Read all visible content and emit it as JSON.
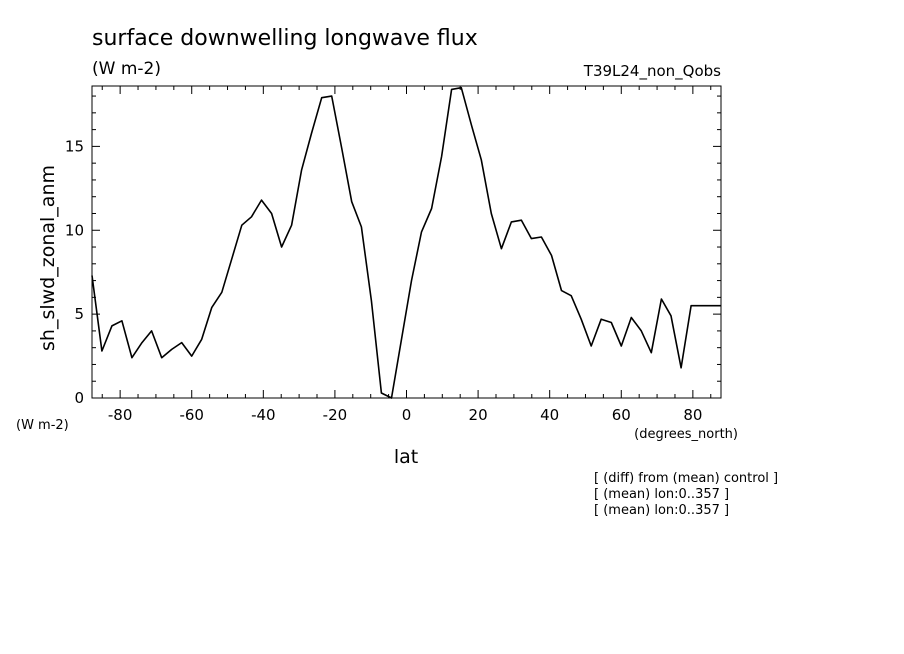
{
  "chart_data": {
    "type": "line",
    "title": "surface downwelling longwave flux",
    "title_units": "(W m-2)",
    "run_label": "T39L24_non_Qobs",
    "ylabel": "sh_slwd_zonal_anm",
    "y_units": "(W m-2)",
    "xlabel": "lat",
    "x_units": "(degrees_north)",
    "xlim": [
      -87.86,
      87.86
    ],
    "ylim": [
      0,
      18.6
    ],
    "x_ticks": [
      -80,
      -60,
      -40,
      -20,
      0,
      20,
      40,
      60,
      80
    ],
    "x_tick_labels": [
      "-80",
      "-60",
      "-40",
      "-20",
      "0",
      "20",
      "40",
      "60",
      "80"
    ],
    "y_ticks": [
      0,
      5,
      10,
      15
    ],
    "y_tick_labels": [
      "0",
      "5",
      "10",
      "15"
    ],
    "grid": false,
    "notes": [
      "[ (diff) from (mean) control ]",
      "[ (mean) lon:0..357 ]",
      "[ (mean) lon:0..357 ]"
    ],
    "series": [
      {
        "color": "#000000",
        "x": [
          -87.86,
          -85.1,
          -82.3,
          -79.5,
          -76.7,
          -73.9,
          -71.2,
          -68.4,
          -65.6,
          -62.8,
          -60.0,
          -57.2,
          -54.4,
          -51.6,
          -48.8,
          -46.0,
          -43.3,
          -40.5,
          -37.7,
          -34.9,
          -32.1,
          -29.3,
          -26.5,
          -23.7,
          -20.9,
          -18.1,
          -15.3,
          -12.6,
          -9.8,
          -7.0,
          -4.2,
          -1.4,
          1.4,
          4.2,
          7.0,
          9.8,
          12.6,
          15.3,
          18.1,
          20.9,
          23.7,
          26.5,
          29.3,
          32.1,
          34.9,
          37.7,
          40.5,
          43.3,
          46.0,
          48.8,
          51.6,
          54.4,
          57.2,
          60.0,
          62.8,
          65.6,
          68.4,
          71.2,
          73.9,
          76.7,
          79.5,
          82.3,
          85.1,
          87.86
        ],
        "y": [
          7.3,
          2.8,
          4.3,
          4.6,
          2.4,
          3.3,
          4.0,
          2.4,
          2.9,
          3.3,
          2.5,
          3.5,
          5.4,
          6.3,
          8.3,
          10.3,
          10.8,
          11.8,
          11.0,
          9.0,
          10.3,
          13.6,
          15.8,
          17.9,
          18.0,
          14.9,
          11.7,
          10.2,
          5.8,
          0.3,
          0.0,
          3.5,
          7.0,
          9.9,
          11.3,
          14.4,
          18.4,
          18.5,
          16.3,
          14.2,
          11.0,
          8.9,
          10.5,
          10.6,
          9.5,
          9.6,
          8.5,
          6.4,
          6.1,
          4.7,
          3.1,
          4.7,
          4.5,
          3.1,
          4.8,
          4.0,
          2.7,
          5.9,
          4.9,
          1.8,
          5.5,
          5.5,
          5.5,
          5.5
        ]
      }
    ]
  }
}
